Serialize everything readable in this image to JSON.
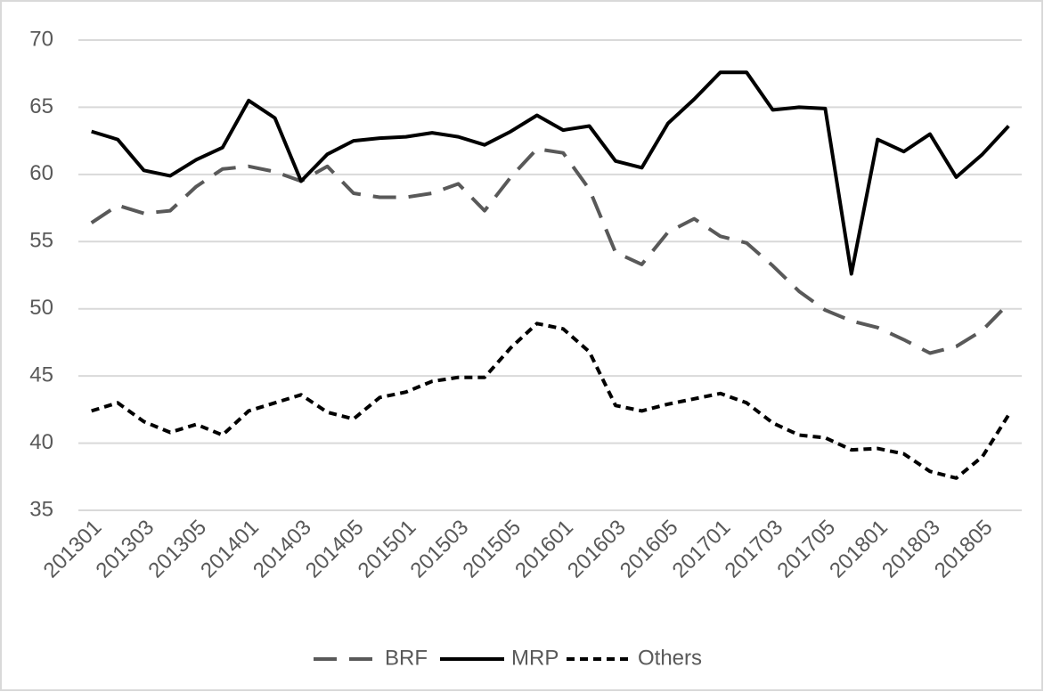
{
  "chart_data": {
    "type": "line",
    "categories": [
      "201301",
      null,
      "201303",
      null,
      "201305",
      null,
      "201401",
      null,
      "201403",
      null,
      "201405",
      null,
      "201501",
      null,
      "201503",
      null,
      "201505",
      null,
      "201601",
      null,
      "201603",
      null,
      "201605",
      null,
      "201701",
      null,
      "201703",
      null,
      "201705",
      null,
      "201801",
      null,
      "201803",
      null,
      "201805",
      null
    ],
    "series": [
      {
        "name": "BRF",
        "color": "#595959",
        "style": "long-dash",
        "values": [
          56.4,
          57.7,
          57.1,
          57.3,
          59.1,
          60.4,
          60.6,
          60.2,
          59.5,
          60.6,
          58.6,
          58.3,
          58.3,
          58.6,
          59.3,
          57.3,
          59.8,
          61.9,
          61.6,
          58.9,
          54.2,
          53.3,
          55.7,
          56.7,
          55.4,
          54.9,
          53.2,
          51.3,
          49.9,
          49.1,
          48.6,
          47.7,
          46.7,
          47.2,
          48.4,
          50.4
        ]
      },
      {
        "name": "MRP",
        "color": "#000000",
        "style": "solid",
        "values": [
          63.2,
          62.6,
          60.3,
          59.9,
          61.1,
          62.0,
          65.5,
          64.2,
          59.5,
          61.5,
          62.5,
          62.7,
          62.8,
          63.1,
          62.8,
          62.2,
          63.2,
          64.4,
          63.3,
          63.6,
          61.0,
          60.5,
          63.8,
          65.6,
          67.6,
          67.6,
          64.8,
          65.0,
          64.9,
          52.6,
          62.6,
          61.7,
          63.0,
          59.8,
          61.5,
          63.6
        ]
      },
      {
        "name": "Others",
        "color": "#000000",
        "style": "dash",
        "values": [
          42.4,
          43.0,
          41.6,
          40.8,
          41.4,
          40.6,
          42.4,
          43.0,
          43.6,
          42.3,
          41.8,
          43.4,
          43.8,
          44.6,
          44.9,
          44.9,
          47.1,
          48.9,
          48.5,
          46.8,
          42.8,
          42.4,
          42.9,
          43.3,
          43.7,
          43.0,
          41.5,
          40.6,
          40.4,
          39.5,
          39.6,
          39.2,
          37.9,
          37.4,
          39.0,
          42.1
        ]
      }
    ],
    "ylim": [
      35,
      70
    ],
    "yticks": [
      35,
      40,
      45,
      50,
      55,
      60,
      65,
      70
    ],
    "grid": true,
    "legend": "bottom"
  }
}
